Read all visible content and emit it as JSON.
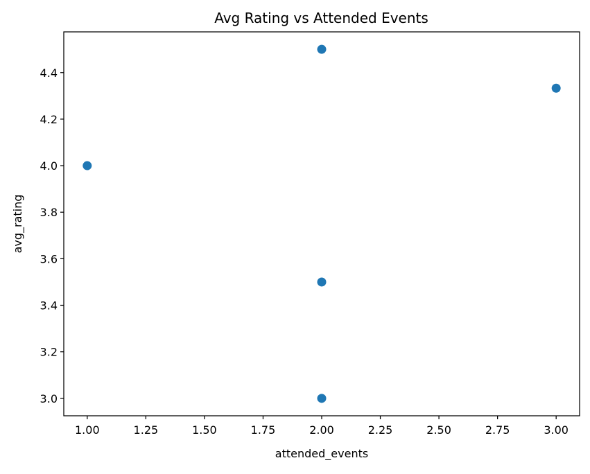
{
  "chart_data": {
    "type": "scatter",
    "title": "Avg Rating vs Attended Events",
    "xlabel": "attended_events",
    "ylabel": "avg_rating",
    "xlim": [
      0.9,
      3.1
    ],
    "ylim": [
      2.925,
      4.575
    ],
    "x_ticks": [
      1.0,
      1.25,
      1.5,
      1.75,
      2.0,
      2.25,
      2.5,
      2.75,
      3.0
    ],
    "x_tick_labels": [
      "1.00",
      "1.25",
      "1.50",
      "1.75",
      "2.00",
      "2.25",
      "2.50",
      "2.75",
      "3.00"
    ],
    "y_ticks": [
      3.0,
      3.2,
      3.4,
      3.6,
      3.8,
      4.0,
      4.2,
      4.4
    ],
    "y_tick_labels": [
      "3.0",
      "3.2",
      "3.4",
      "3.6",
      "3.8",
      "4.0",
      "4.2",
      "4.4"
    ],
    "grid": false,
    "series": [
      {
        "color": "#1f77b4",
        "x": [
          1.0,
          2.0,
          2.0,
          2.0,
          3.0
        ],
        "y": [
          4.0,
          4.5,
          3.5,
          3.0,
          4.333
        ]
      }
    ]
  }
}
